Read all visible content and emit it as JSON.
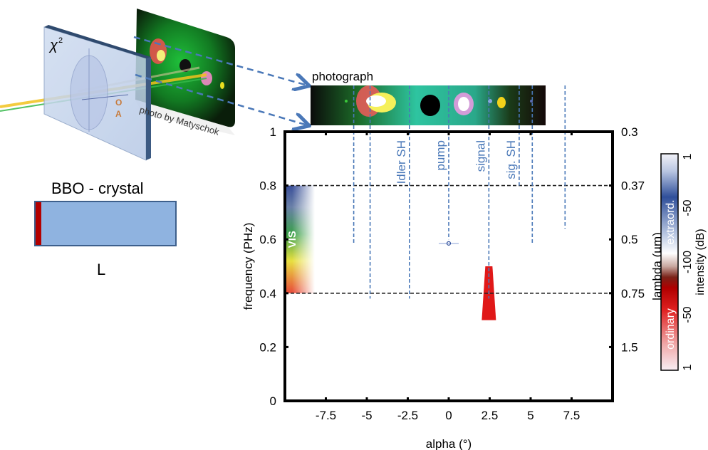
{
  "illustration": {
    "chi_label": "χ",
    "chi_superscript": "2",
    "axis_o": "O",
    "axis_a": "A",
    "photo_credit": "photo by Matyschok"
  },
  "crystal": {
    "title": "BBO - crystal",
    "length_label": "L",
    "fill_color": "#8fb3e0",
    "edge_color": "#b30000"
  },
  "photograph": {
    "label": "photograph"
  },
  "chart_data": {
    "type": "heatmap",
    "title": "",
    "xlabel": "alpha (°)",
    "ylabel": "frequency (PHz)",
    "y2label": "lambda (µm)",
    "xlim": [
      -10,
      10
    ],
    "ylim": [
      0,
      1
    ],
    "x_ticks": [
      -7.5,
      -5,
      -2.5,
      0,
      2.5,
      5,
      7.5
    ],
    "x_tick_labels": [
      "-7.5",
      "-5",
      "-2.5",
      "0",
      "2.5",
      "5",
      "7.5"
    ],
    "y_ticks": [
      0,
      0.2,
      0.4,
      0.6,
      0.8,
      1
    ],
    "y_tick_labels": [
      "0",
      "0.2",
      "0.4",
      "0.6",
      "0.8",
      "1"
    ],
    "y2_ticks": [
      {
        "freq": 1.0,
        "label": "0.3"
      },
      {
        "freq": 0.8,
        "label": "0.37"
      },
      {
        "freq": 0.6,
        "label": "0.5"
      },
      {
        "freq": 0.4,
        "label": "0.75"
      },
      {
        "freq": 0.2,
        "label": "1.5"
      }
    ],
    "hlines": [
      0.8,
      0.4
    ],
    "vis_band": {
      "label": "VIS",
      "freq_range": [
        0.4,
        0.8
      ]
    },
    "beam_markers": [
      {
        "alpha": -5.8,
        "freq_bottom": 0.58,
        "label": ""
      },
      {
        "alpha": -4.8,
        "freq_bottom": 0.38,
        "label": ""
      },
      {
        "alpha": -2.4,
        "freq_bottom": 0.38,
        "label": "Idler SH"
      },
      {
        "alpha": 0.0,
        "freq_bottom": 0.6,
        "label": "pump"
      },
      {
        "alpha": 2.45,
        "freq_bottom": 0.38,
        "label": "signal"
      },
      {
        "alpha": 4.3,
        "freq_bottom": 0.8,
        "label": "sig. SH"
      },
      {
        "alpha": 5.1,
        "freq_bottom": 0.58,
        "label": ""
      },
      {
        "alpha": 7.1,
        "freq_bottom": 0.64,
        "label": ""
      }
    ],
    "features": [
      {
        "name": "pump point",
        "alpha": 0.0,
        "freq": 0.585,
        "type": "extraordinary"
      },
      {
        "name": "signal cone",
        "alpha": 2.45,
        "freq_range": [
          0.3,
          0.5
        ],
        "type": "ordinary"
      }
    ]
  },
  "colorbar": {
    "label": "intensity (dB)",
    "ticks": [
      "1",
      "-50",
      "-100",
      "-50",
      "1"
    ],
    "top_label": "extraord.",
    "bottom_label": "ordinary",
    "top_color": "#2f4f9a",
    "bottom_color": "#d40000"
  }
}
